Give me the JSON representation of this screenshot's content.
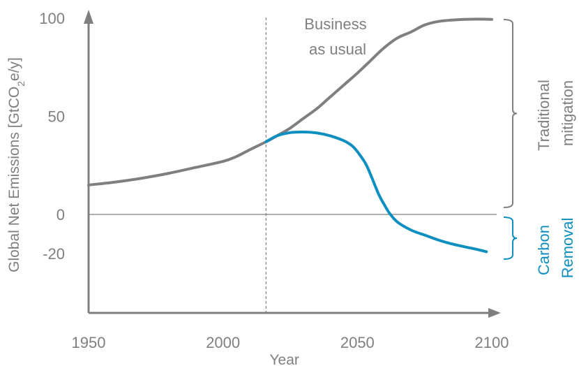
{
  "chart_data": {
    "type": "line",
    "xlabel": "Year",
    "ylabel_parts": {
      "pre": "Global Net Emissions [GtCO",
      "sub": "2",
      "post": "e/y]"
    },
    "xlim": [
      1950,
      2100
    ],
    "ylim": [
      -40,
      100
    ],
    "x_ticks": [
      1950,
      2000,
      2050,
      2100
    ],
    "y_ticks": [
      100,
      50,
      0,
      -20
    ],
    "reference_line_y": 0,
    "reference_line_x": 2016,
    "grid": false,
    "legend": "none",
    "series": [
      {
        "color": "#7f7f7f",
        "points": [
          [
            1950,
            15
          ],
          [
            1960,
            16.5
          ],
          [
            1970,
            18.5
          ],
          [
            1980,
            21
          ],
          [
            1990,
            24
          ],
          [
            2000,
            27
          ],
          [
            2005,
            29.5
          ],
          [
            2010,
            33
          ],
          [
            2016,
            37
          ],
          [
            2020,
            40
          ],
          [
            2025,
            44
          ],
          [
            2030,
            49
          ],
          [
            2035,
            54
          ],
          [
            2040,
            60
          ],
          [
            2045,
            66
          ],
          [
            2050,
            72
          ],
          [
            2055,
            78.5
          ],
          [
            2060,
            85
          ],
          [
            2065,
            90
          ],
          [
            2070,
            93
          ],
          [
            2075,
            96.5
          ],
          [
            2080,
            98.3
          ],
          [
            2085,
            99
          ],
          [
            2090,
            99.4
          ],
          [
            2095,
            99.5
          ],
          [
            2100,
            99.4
          ]
        ]
      },
      {
        "color": "#0e8fbf",
        "points": [
          [
            2016,
            37
          ],
          [
            2020,
            40
          ],
          [
            2025,
            41.7
          ],
          [
            2030,
            42
          ],
          [
            2035,
            41.5
          ],
          [
            2040,
            40
          ],
          [
            2045,
            37.5
          ],
          [
            2048,
            35
          ],
          [
            2050,
            32
          ],
          [
            2053,
            26
          ],
          [
            2055,
            20
          ],
          [
            2058,
            10
          ],
          [
            2060,
            5
          ],
          [
            2062,
            0.5
          ],
          [
            2065,
            -4
          ],
          [
            2070,
            -8
          ],
          [
            2075,
            -10.5
          ],
          [
            2080,
            -13
          ],
          [
            2085,
            -15
          ],
          [
            2090,
            -16.5
          ],
          [
            2095,
            -18
          ],
          [
            2098,
            -19
          ]
        ]
      }
    ],
    "annotations": {
      "bau": [
        "Business",
        "as usual"
      ],
      "traditional": [
        "Traditional",
        "mitigation"
      ],
      "carbon": [
        "Carbon",
        "Removal"
      ]
    },
    "colors": {
      "axis": "#7f7f7f",
      "gray": "#7f7f7f",
      "blue": "#0e8fbf"
    }
  }
}
